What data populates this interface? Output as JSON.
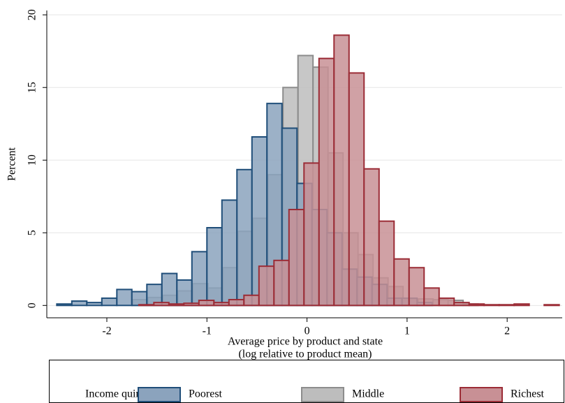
{
  "chart_data": {
    "type": "histogram",
    "ylabel": "Percent",
    "xlabel": [
      "Average price by product and state",
      "(log relative to product mean)"
    ],
    "legend_title": "Income quintile:",
    "legend_position": "bottom",
    "grid": true,
    "xlim": [
      -2.6,
      2.55
    ],
    "xticks": [
      -2,
      -1,
      0,
      1,
      2
    ],
    "ylim": [
      -0.85,
      20.3
    ],
    "yticks": [
      0,
      5,
      10,
      15,
      20
    ],
    "series": [
      {
        "name": "Middle",
        "color": "#bdbdbd",
        "edge": "#8c8c8c",
        "bins": [
          -1.74,
          -1.59,
          -1.44,
          -1.29,
          -1.14,
          -0.99,
          -0.84,
          -0.69,
          -0.54,
          -0.39,
          -0.24,
          -0.09,
          0.06,
          0.21,
          0.36,
          0.51,
          0.66,
          0.81,
          0.96,
          1.11,
          1.26,
          1.41,
          1.56,
          1.71
        ],
        "values": [
          0.4,
          0.55,
          0.7,
          1.0,
          1.5,
          1.2,
          2.6,
          5.1,
          6.0,
          9.0,
          15.0,
          17.2,
          16.4,
          10.5,
          5.0,
          3.5,
          1.9,
          1.3,
          0.4,
          0.45,
          0.4,
          0.35,
          0.1
        ]
      },
      {
        "name": "Poorest",
        "color": "#8ba3bd",
        "edge": "#1f4e79",
        "bins": [
          -2.5,
          -2.35,
          -2.2,
          -2.05,
          -1.9,
          -1.75,
          -1.6,
          -1.45,
          -1.3,
          -1.15,
          -1.0,
          -0.85,
          -0.7,
          -0.55,
          -0.4,
          -0.25,
          -0.1,
          0.05,
          0.2,
          0.35,
          0.5,
          0.65,
          0.8,
          0.95,
          1.1,
          1.25
        ],
        "values": [
          0.1,
          0.3,
          0.2,
          0.5,
          1.1,
          0.95,
          1.45,
          2.2,
          1.75,
          3.7,
          5.35,
          7.25,
          9.35,
          11.6,
          13.9,
          12.2,
          8.4,
          6.6,
          5.0,
          2.5,
          1.95,
          1.45,
          0.5,
          0.5,
          0.2
        ]
      },
      {
        "name": "Richest",
        "color": "#c89095",
        "edge": "#9b2c36",
        "bins": [
          -1.68,
          -1.53,
          -1.38,
          -1.23,
          -1.08,
          -0.93,
          -0.78,
          -0.63,
          -0.48,
          -0.33,
          -0.18,
          -0.03,
          0.12,
          0.27,
          0.42,
          0.57,
          0.72,
          0.87,
          1.02,
          1.17,
          1.32,
          1.47,
          1.62,
          1.77,
          1.92,
          2.07,
          2.22,
          2.37,
          2.52
        ],
        "values": [
          0.05,
          0.2,
          0.1,
          0.15,
          0.35,
          0.2,
          0.4,
          0.7,
          2.7,
          3.1,
          6.6,
          9.8,
          17.0,
          18.6,
          16.0,
          9.4,
          5.8,
          3.2,
          2.6,
          1.2,
          0.5,
          0.2,
          0.1,
          0.05,
          0.05,
          0.1,
          0,
          0.05
        ]
      }
    ]
  }
}
